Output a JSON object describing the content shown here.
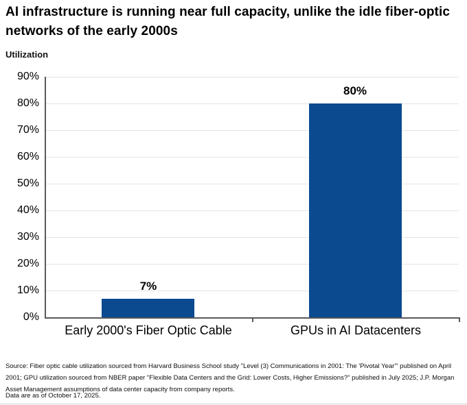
{
  "page": {
    "title": "AI infrastructure is running near full capacity, unlike the idle fiber-optic networks of the early 2000s",
    "source_note": "Source: Fiber optic cable utilization sourced from Harvard Business School study \"Level (3) Communications in 2001: The 'Pivotal Year'\" published on April 2001; GPU utilization sourced from NBER paper \"Flexible Data Centers and the Grid: Lower Costs, Higher Emissions?\" published in July 2025; J.P. Morgan Asset Management assumptions of data center capacity from company reports.",
    "as_of_note": "Data are as of October 17, 2025."
  },
  "chart_data": {
    "type": "bar",
    "title": "AI infrastructure is running near full capacity, unlike the idle fiber-optic networks of the early 2000s",
    "ylabel": "Utilization",
    "xlabel": "",
    "categories": [
      "Early 2000's Fiber Optic Cable",
      "GPUs in AI Datacenters"
    ],
    "values": [
      7,
      80
    ],
    "value_labels": [
      "7%",
      "80%"
    ],
    "ylim": [
      0,
      90
    ],
    "ytick_step": 10,
    "ytick_labels": [
      "0%",
      "10%",
      "20%",
      "30%",
      "40%",
      "50%",
      "60%",
      "70%",
      "80%",
      "90%"
    ],
    "grid": "horizontal-on",
    "legend": "none",
    "bar_color": "#0b4a8f",
    "axis_color": "#58595b",
    "gridline_color": "#e4e4e4"
  }
}
